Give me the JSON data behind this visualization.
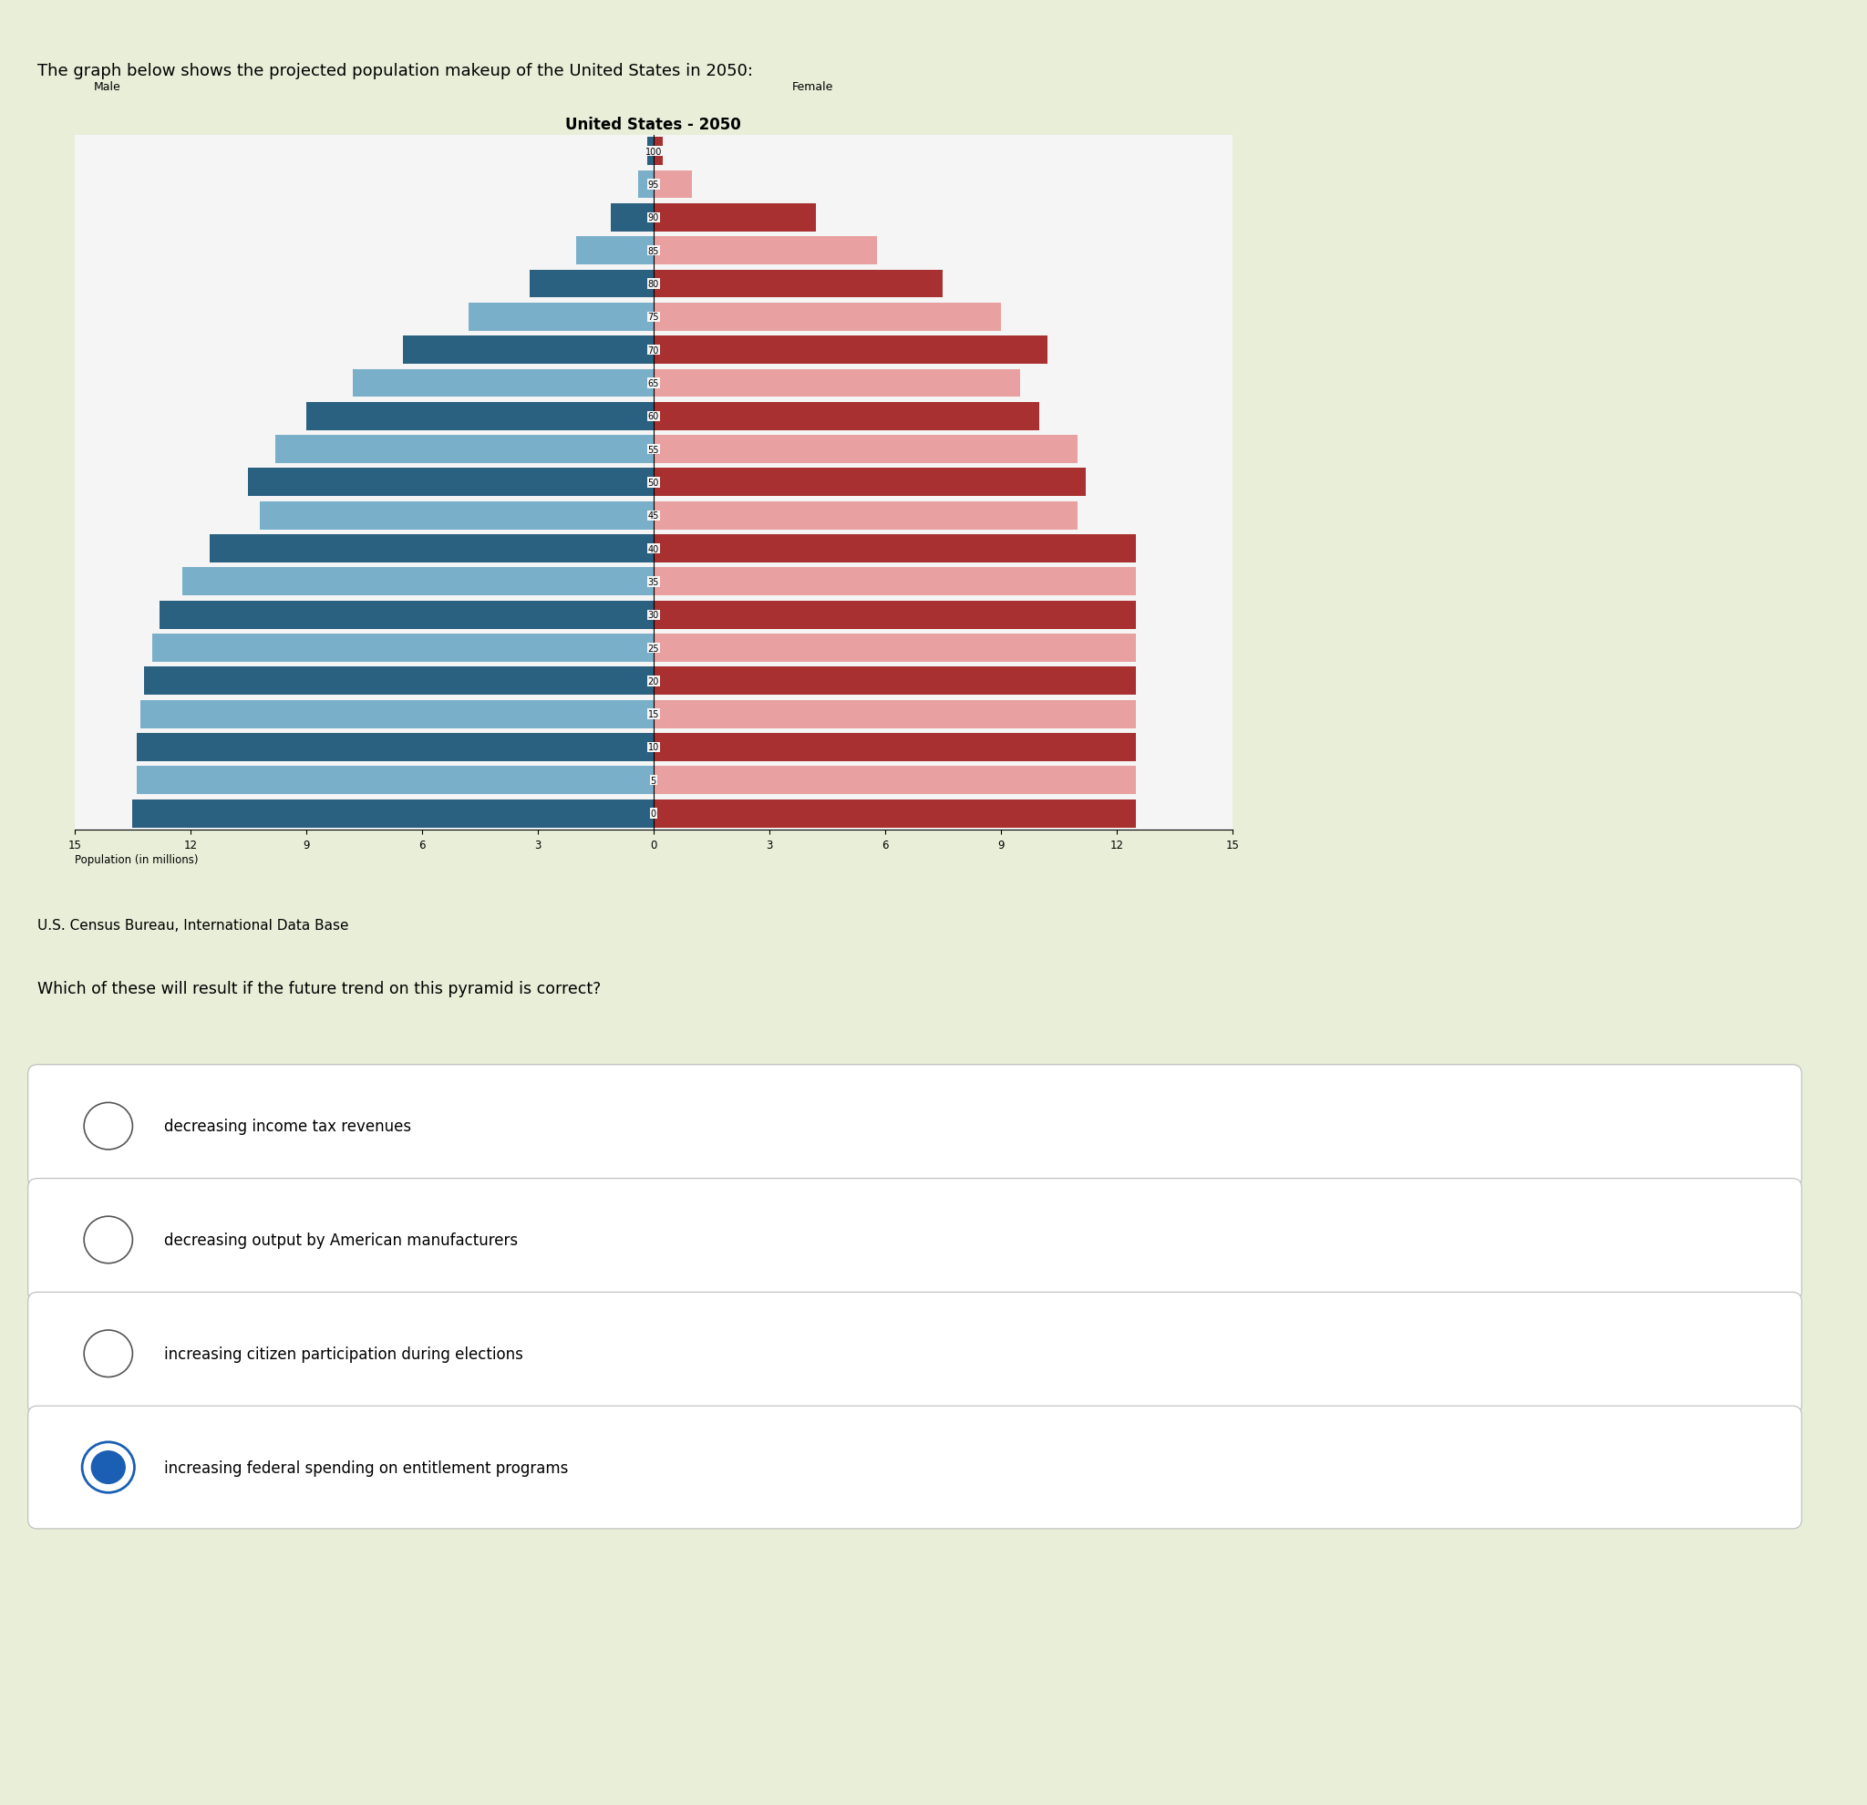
{
  "title": "United States - 2050",
  "header": "The graph below shows the projected population makeup of the United States in 2050:",
  "male_label": "Male",
  "female_label": "Female",
  "xlabel": "Population (in millions)",
  "source": "U.S. Census Bureau, International Data Base",
  "question": "Which of these will result if the future trend on this pyramid is correct?",
  "options": [
    "decreasing income tax revenues",
    "decreasing output by American manufacturers",
    "increasing citizen participation during elections",
    "increasing federal spending on entitlement programs"
  ],
  "selected_option": 3,
  "age_groups": [
    100,
    95,
    90,
    85,
    80,
    75,
    70,
    65,
    60,
    55,
    50,
    45,
    40,
    35,
    30,
    25,
    20,
    15,
    10,
    5,
    0
  ],
  "male_values": [
    0.15,
    0.4,
    1.1,
    2.0,
    3.2,
    4.8,
    6.5,
    7.8,
    9.0,
    9.8,
    10.5,
    10.2,
    11.5,
    12.2,
    12.8,
    13.0,
    13.2,
    13.3,
    13.4,
    13.4,
    13.5
  ],
  "female_values": [
    0.25,
    1.0,
    4.2,
    5.8,
    7.5,
    9.0,
    10.2,
    9.5,
    10.0,
    11.0,
    11.2,
    11.0,
    12.5,
    12.5,
    12.5,
    12.5,
    12.5,
    12.5,
    12.5,
    12.5,
    12.5
  ],
  "male_colors_dark": "#2a6080",
  "male_colors_light": "#7aafca",
  "female_colors_dark": "#a83030",
  "female_colors_light": "#e8a0a0",
  "chart_bg": "#f5f5f5",
  "page_bg_top": "#dde8cc",
  "page_bg": "#e8eed8",
  "xlim": 15,
  "bar_height": 0.85
}
